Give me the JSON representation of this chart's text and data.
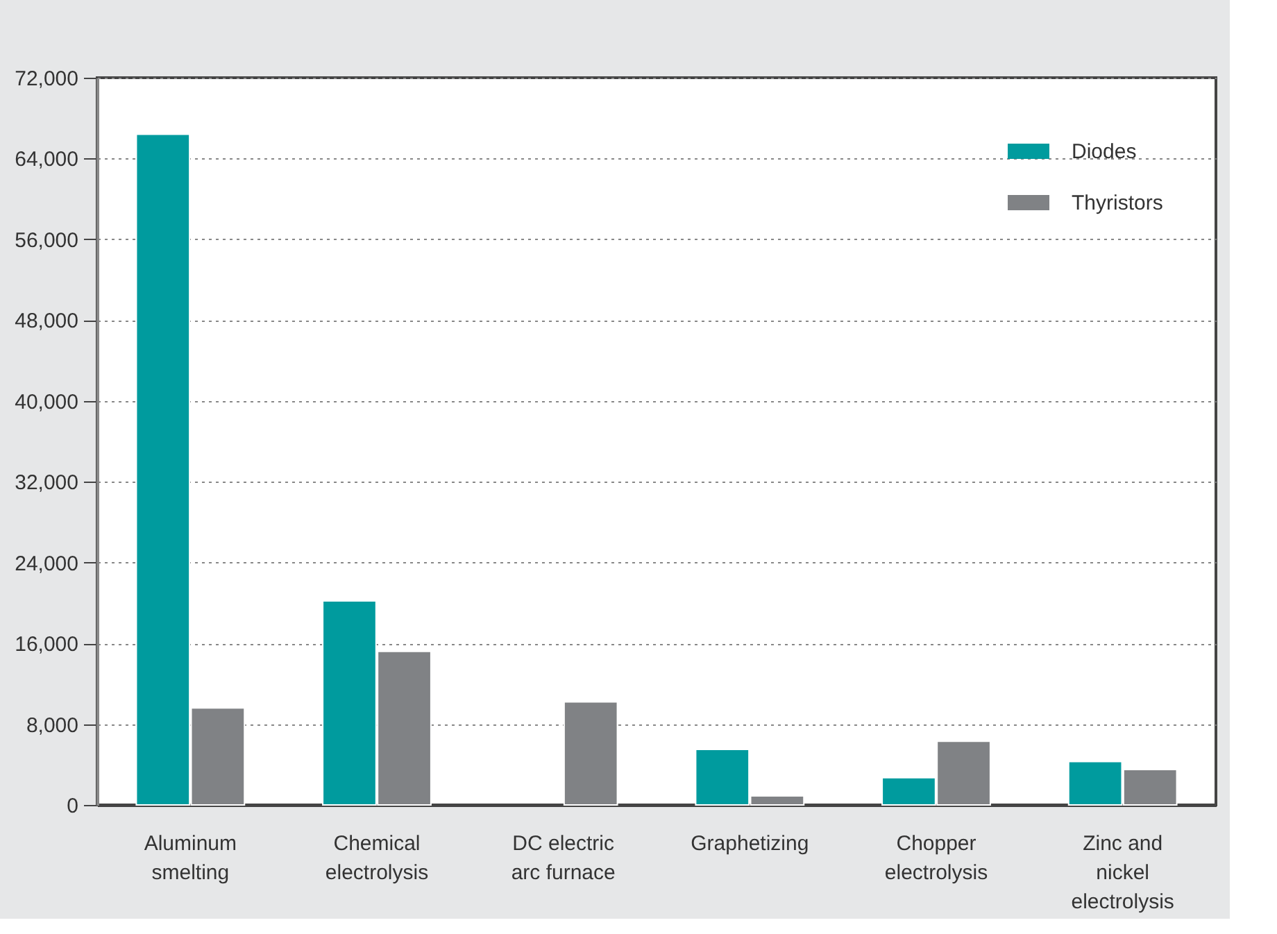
{
  "chart_data": {
    "type": "bar",
    "categories": [
      "Aluminum smelting",
      "Chemical electrolysis",
      "DC electric arc furnace",
      "Graphetizing",
      "Chopper electrolysis",
      "Zinc and nickel electrolysis"
    ],
    "series": [
      {
        "name": "Diodes",
        "color": "#009b9e",
        "values": [
          66400,
          20200,
          null,
          5500,
          2700,
          4300
        ]
      },
      {
        "name": "Thyristors",
        "color": "#808285",
        "values": [
          9600,
          15200,
          10200,
          900,
          6300,
          3500
        ]
      }
    ],
    "ylim": [
      0,
      72000
    ],
    "yticks": [
      {
        "value": 0,
        "label": "0"
      },
      {
        "value": 8000,
        "label": "8,000"
      },
      {
        "value": 16000,
        "label": "16,000"
      },
      {
        "value": 24000,
        "label": "24,000"
      },
      {
        "value": 32000,
        "label": "32,000"
      },
      {
        "value": 40000,
        "label": "40,000"
      },
      {
        "value": 48000,
        "label": "48,000"
      },
      {
        "value": 56000,
        "label": "56,000"
      },
      {
        "value": 64000,
        "label": "64,000"
      },
      {
        "value": 72000,
        "label": "72,000"
      }
    ],
    "grid": "y",
    "legend": "top right"
  }
}
